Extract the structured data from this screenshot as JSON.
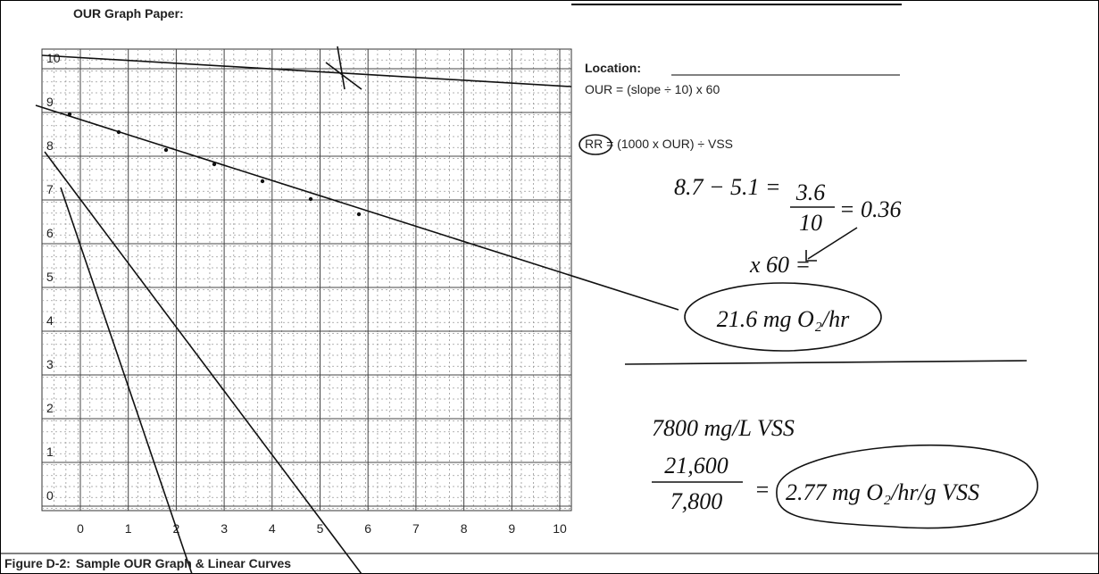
{
  "header": {
    "title": "OUR Graph Paper:"
  },
  "graph": {
    "y_labels": [
      10,
      9,
      8,
      7,
      6,
      5,
      4,
      3,
      2,
      1,
      0
    ],
    "x_labels": [
      0,
      1,
      2,
      3,
      4,
      5,
      6,
      7,
      8,
      9,
      10
    ]
  },
  "notes": {
    "location": "Location:",
    "our_formula": "OUR = (slope ÷ 10) x 60",
    "rr_formula": "RR = (1000 x OUR) ÷ VSS"
  },
  "handwriting": {
    "subtraction": "8.7 − 5.1 =",
    "numerator": "3.6",
    "denominator": "10",
    "result": "= 0.36",
    "multiply": "x 60 =",
    "our_result": "21.6 mg O₂/hr",
    "vss": "7800 mg/L VSS",
    "rr_numerator": "21,600",
    "rr_denominator": "7,800",
    "equals": "=",
    "rr_result": "2.77 mg O₂/hr/g VSS"
  },
  "caption": {
    "label": "Figure D-2:",
    "text": "Sample OUR Graph & Linear Curves"
  }
}
